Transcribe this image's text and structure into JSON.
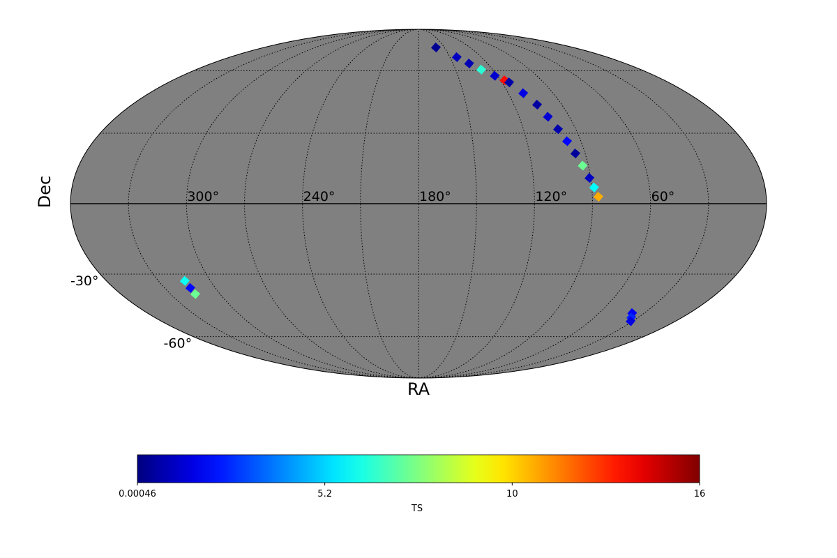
{
  "chart_data": {
    "type": "mollweide",
    "x_label": "RA",
    "y_label": "Dec",
    "xticks": [
      {
        "value": 300,
        "label": "300°"
      },
      {
        "value": 240,
        "label": "240°"
      },
      {
        "value": 180,
        "label": "180°"
      },
      {
        "value": 120,
        "label": "120°"
      },
      {
        "value": 60,
        "label": "60°"
      }
    ],
    "yticks": [
      {
        "value": -30,
        "label": "-30°"
      },
      {
        "value": -60,
        "label": "-60°"
      }
    ],
    "graticule_step": 30,
    "background_color": "#808080",
    "colormap": "jet",
    "pixels": {
      "ra": [
        159.7,
        143.5,
        136,
        129.3,
        122,
        117,
        114.7,
        110,
        105.5,
        102.8,
        100.2,
        97.7,
        95.3,
        93,
        90.6,
        88.8,
        86.9,
        314.8,
        314.8,
        315,
        38,
        34.8,
        31.5
      ],
      "dec": [
        73.8,
        67.7,
        64,
        60.6,
        57.3,
        55,
        53.9,
        48.5,
        43.0,
        37.4,
        31.8,
        26.5,
        21.2,
        16,
        10.8,
        6.8,
        2.9,
        -33,
        -36.2,
        -39,
        -48,
        -50.1,
        -52
      ],
      "values": [
        0.3,
        1.0,
        0.8,
        6.5,
        1.2,
        13.5,
        0.6,
        1.5,
        0.5,
        1.3,
        0.7,
        2.0,
        0.4,
        7.5,
        1.0,
        5.8,
        11,
        6,
        2,
        7.5,
        1.8,
        2.5,
        1.5
      ]
    },
    "colorbar": {
      "label": "TS",
      "clim": [
        0.00046,
        15.6
      ],
      "ticks": [
        0.00046,
        5.2,
        {
          "value": 10.4,
          "label": "10"
        },
        {
          "value": 15.6,
          "label": "16"
        }
      ]
    }
  }
}
